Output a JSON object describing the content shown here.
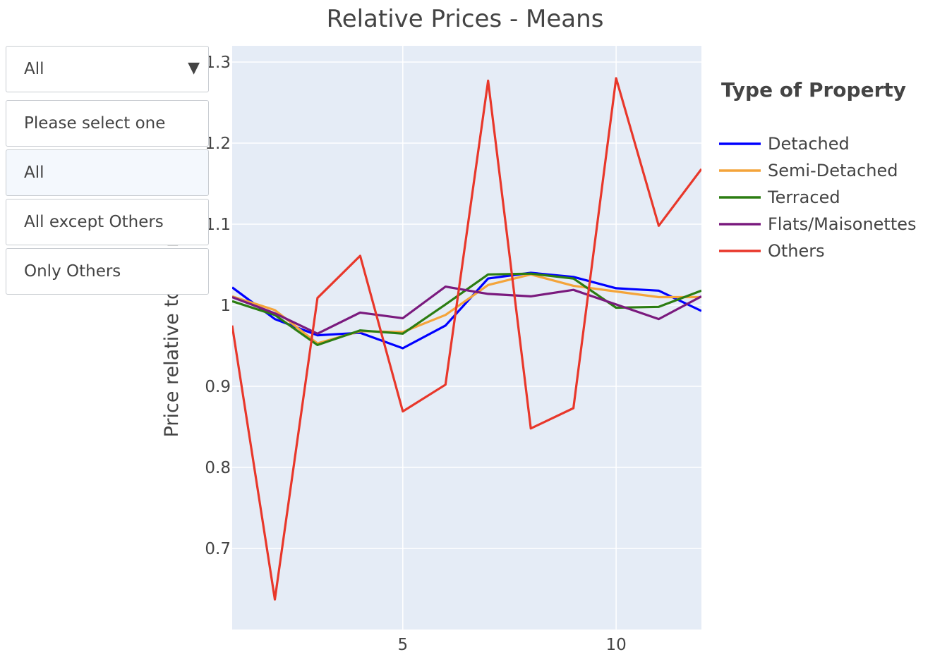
{
  "chart_data": {
    "type": "line",
    "title": "Relative Prices - Means",
    "ylabel": "Price relative to year",
    "xlim": [
      1,
      12
    ],
    "ylim": [
      0.6,
      1.32
    ],
    "x_ticks": [
      5,
      10
    ],
    "y_ticks": [
      0.7,
      0.8,
      0.9,
      1,
      1.1,
      1.2,
      1.3
    ],
    "y_tick_labels": [
      "0.7",
      "0.8",
      "0.9",
      "1",
      "1.1",
      "1.2",
      "1.3"
    ],
    "grid": true,
    "legend_position": "right",
    "legend_title": "Type of Property",
    "x": [
      1,
      2,
      3,
      4,
      5,
      6,
      7,
      8,
      9,
      10,
      11,
      12
    ],
    "series": [
      {
        "name": "Detached",
        "color": "#0000ff",
        "values": [
          1.022,
          0.983,
          0.963,
          0.966,
          0.947,
          0.975,
          1.033,
          1.04,
          1.035,
          1.021,
          1.018,
          0.993
        ]
      },
      {
        "name": "Semi-Detached",
        "color": "#f4a43a",
        "values": [
          1.011,
          0.994,
          0.953,
          0.968,
          0.967,
          0.988,
          1.025,
          1.038,
          1.024,
          1.017,
          1.01,
          1.01
        ]
      },
      {
        "name": "Terraced",
        "color": "#2b7d12",
        "values": [
          1.005,
          0.988,
          0.951,
          0.969,
          0.965,
          1.001,
          1.038,
          1.039,
          1.033,
          0.997,
          0.998,
          1.018
        ]
      },
      {
        "name": "Flats/Maisonettes",
        "color": "#7a1a7e",
        "values": [
          1.01,
          0.99,
          0.965,
          0.991,
          0.984,
          1.023,
          1.014,
          1.011,
          1.019,
          1.001,
          0.983,
          1.011
        ]
      },
      {
        "name": "Others",
        "color": "#e8372a",
        "values": [
          0.975,
          0.637,
          1.009,
          1.061,
          0.869,
          0.902,
          1.277,
          0.848,
          0.873,
          1.28,
          1.098,
          1.168
        ]
      }
    ]
  },
  "dropdown": {
    "selected": "All",
    "caret": "▼",
    "options": [
      "Please select one",
      "All",
      "All except Others",
      "Only Others"
    ],
    "active_option": "All"
  }
}
